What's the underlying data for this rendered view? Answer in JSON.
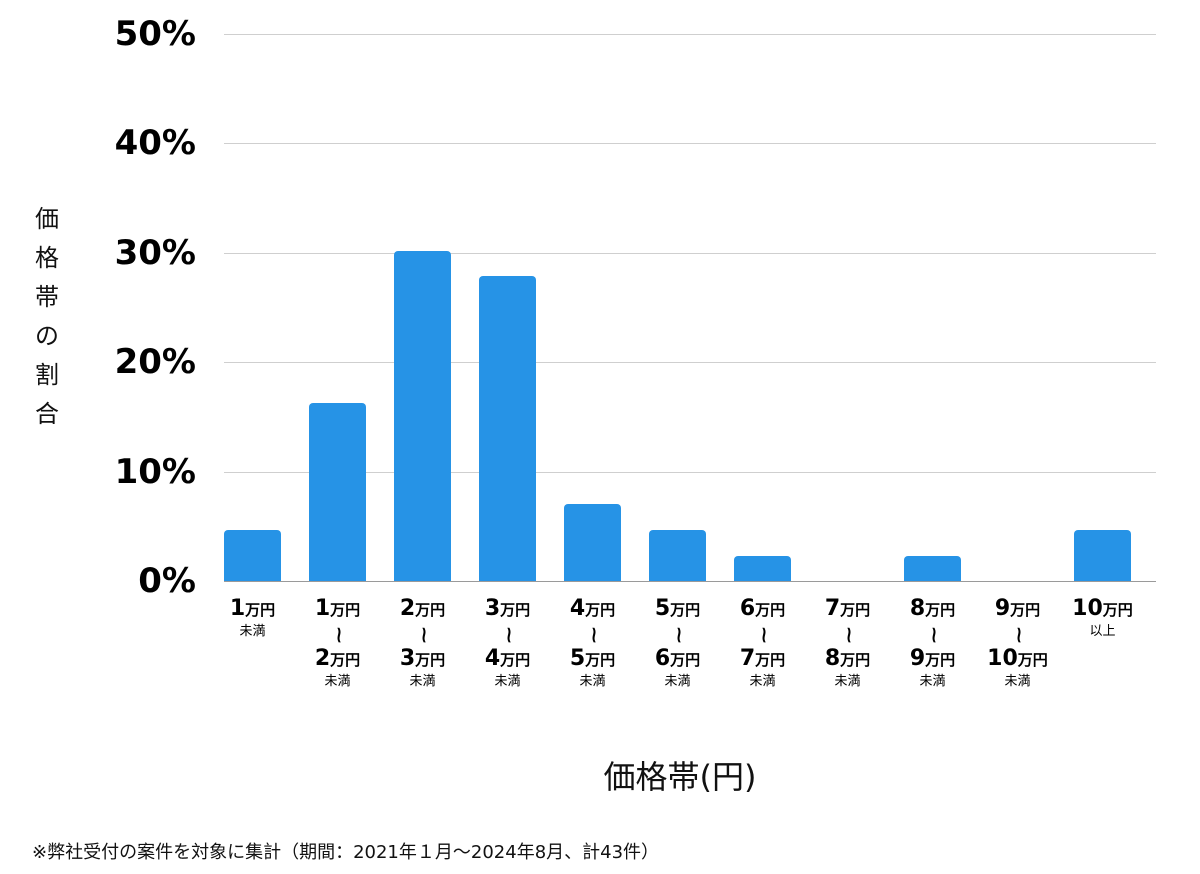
{
  "chart_data": {
    "type": "bar",
    "title": "",
    "xlabel": "価格帯(円)",
    "ylabel": "価格帯の割合",
    "ylim": [
      0,
      50
    ],
    "yticks": [
      "0%",
      "10%",
      "20%",
      "30%",
      "40%",
      "50%"
    ],
    "grid": true,
    "legend": null,
    "categories": [
      "1万円未満",
      "1万円〜2万円未満",
      "2万円〜3万円未満",
      "3万円〜4万円未満",
      "4万円〜5万円未満",
      "5万円〜6万円未満",
      "6万円〜7万円未満",
      "7万円〜8万円未満",
      "8万円〜9万円未満",
      "9万円〜10万円未満",
      "10万円以上"
    ],
    "values": [
      4.7,
      16.3,
      30.2,
      27.9,
      7.0,
      4.7,
      2.3,
      0,
      2.3,
      0,
      4.7
    ],
    "bar_color": "#2693e6",
    "annotation": "※弊社受付の案件を対象に集計（期間：2021年１月〜2024年8月、計43件）"
  },
  "yaxis": {
    "label_chars": [
      "価",
      "格",
      "帯",
      "の",
      "割",
      "合"
    ],
    "ticks": [
      {
        "label": "50%",
        "value": 50
      },
      {
        "label": "40%",
        "value": 40
      },
      {
        "label": "30%",
        "value": 30
      },
      {
        "label": "20%",
        "value": 20
      },
      {
        "label": "10%",
        "value": 10
      },
      {
        "label": "0%",
        "value": 0
      }
    ]
  },
  "xaxis": {
    "title": "価格帯(円)",
    "categories": [
      {
        "from": "1",
        "from_unit": "万円",
        "to": "",
        "to_unit": "",
        "suffix": "未満"
      },
      {
        "from": "1",
        "from_unit": "万円",
        "to": "2",
        "to_unit": "万円",
        "suffix": "未満"
      },
      {
        "from": "2",
        "from_unit": "万円",
        "to": "3",
        "to_unit": "万円",
        "suffix": "未満"
      },
      {
        "from": "3",
        "from_unit": "万円",
        "to": "4",
        "to_unit": "万円",
        "suffix": "未満"
      },
      {
        "from": "4",
        "from_unit": "万円",
        "to": "5",
        "to_unit": "万円",
        "suffix": "未満"
      },
      {
        "from": "5",
        "from_unit": "万円",
        "to": "6",
        "to_unit": "万円",
        "suffix": "未満"
      },
      {
        "from": "6",
        "from_unit": "万円",
        "to": "7",
        "to_unit": "万円",
        "suffix": "未満"
      },
      {
        "from": "7",
        "from_unit": "万円",
        "to": "8",
        "to_unit": "万円",
        "suffix": "未満"
      },
      {
        "from": "8",
        "from_unit": "万円",
        "to": "9",
        "to_unit": "万円",
        "suffix": "未満"
      },
      {
        "from": "9",
        "from_unit": "万円",
        "to": "10",
        "to_unit": "万円",
        "suffix": "未満"
      },
      {
        "from": "10",
        "from_unit": "万円",
        "to": "",
        "to_unit": "",
        "suffix": "以上"
      }
    ],
    "range_symbol": "~"
  },
  "footnote": "※弊社受付の案件を対象に集計（期間：2021年１月〜2024年8月、計43件）"
}
